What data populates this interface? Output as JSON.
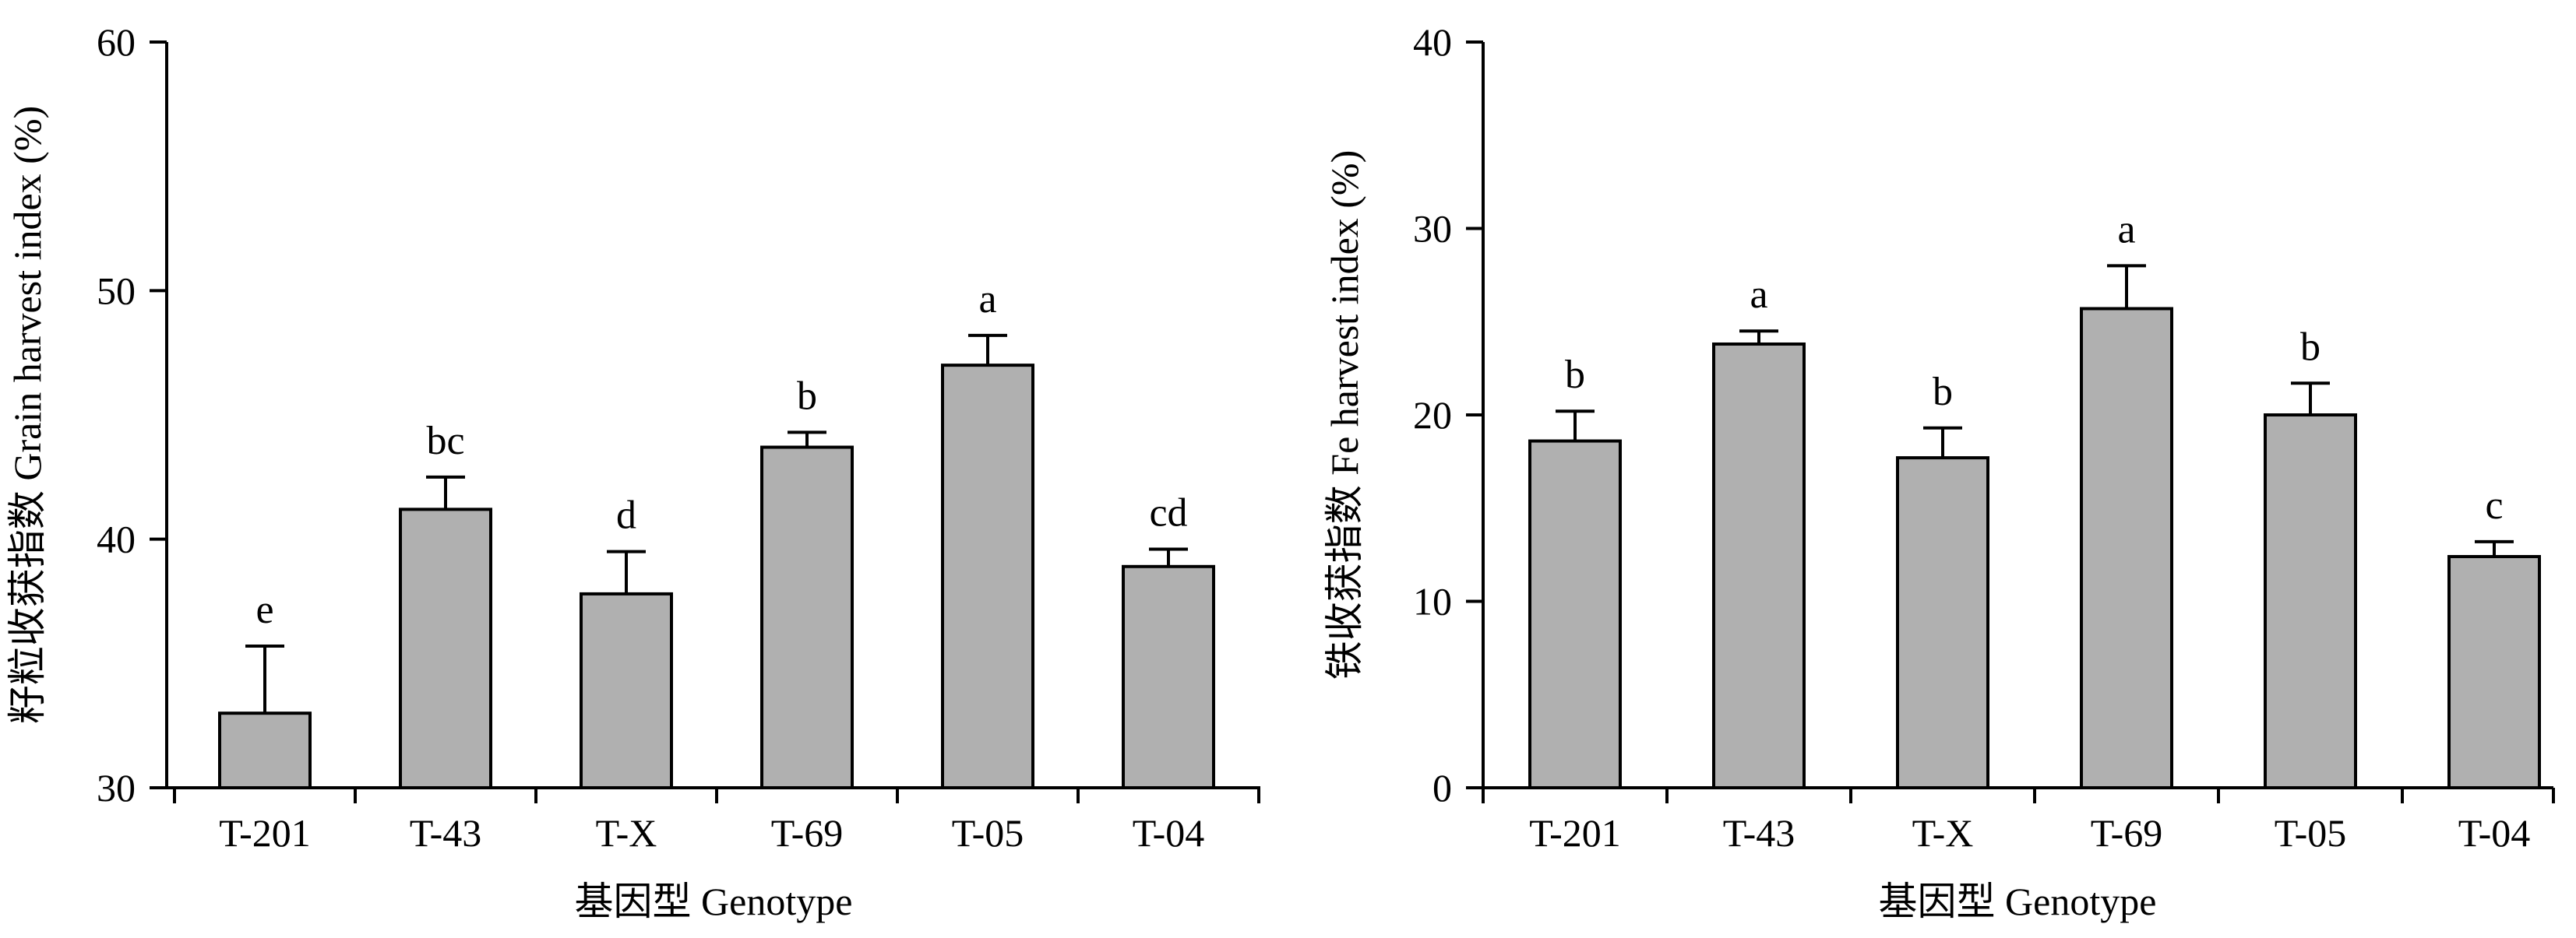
{
  "colors": {
    "bar_fill": "#b0b0b0",
    "axis": "#000000",
    "background": "#ffffff"
  },
  "chart_data": [
    {
      "type": "bar",
      "title": "",
      "xlabel": "基因型 Genotype",
      "ylabel": "籽粒收获指数 Grain harvest index (%)",
      "categories": [
        "T-201",
        "T-43",
        "T-X",
        "T-69",
        "T-05",
        "T-04"
      ],
      "values": [
        33.0,
        41.2,
        37.8,
        43.7,
        47.0,
        38.9
      ],
      "errors": [
        2.7,
        1.3,
        1.7,
        0.6,
        1.2,
        0.7
      ],
      "letters": [
        "e",
        "bc",
        "d",
        "b",
        "a",
        "cd"
      ],
      "ylim": [
        30,
        60
      ],
      "yticks": [
        30,
        40,
        50,
        60
      ],
      "grid": false
    },
    {
      "type": "bar",
      "title": "",
      "xlabel": "基因型 Genotype",
      "ylabel": "铁收获指数 Fe harvest index (%)",
      "categories": [
        "T-201",
        "T-43",
        "T-X",
        "T-69",
        "T-05",
        "T-04"
      ],
      "values": [
        18.6,
        23.8,
        17.7,
        25.7,
        20.0,
        12.4
      ],
      "errors": [
        1.6,
        0.7,
        1.6,
        2.3,
        1.7,
        0.8
      ],
      "letters": [
        "b",
        "a",
        "b",
        "a",
        "b",
        "c"
      ],
      "ylim": [
        0,
        40
      ],
      "yticks": [
        0,
        10,
        20,
        30,
        40
      ],
      "grid": false
    }
  ]
}
